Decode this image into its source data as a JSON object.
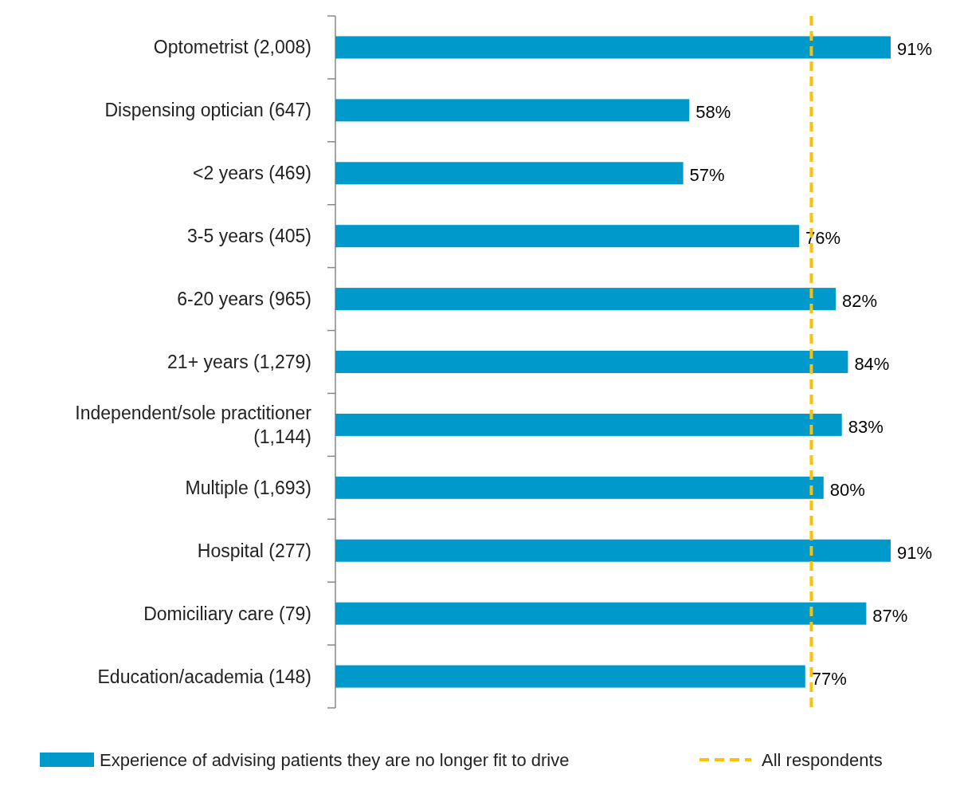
{
  "chart_data": {
    "type": "bar",
    "orientation": "horizontal",
    "categories": [
      "Optometrist (2,008)",
      "Dispensing optician (647)",
      "<2 years (469)",
      "3-5 years (405)",
      "6-20 years (965)",
      "21+ years (1,279)",
      "Independent/sole practitioner (1,144)",
      "Multiple (1,693)",
      "Hospital (277)",
      "Domiciliary care (79)",
      "Education/academia (148)"
    ],
    "series": [
      {
        "name": "Experience of advising patients they are no longer fit to drive",
        "color": "#0099cc",
        "values": [
          91,
          58,
          57,
          76,
          82,
          84,
          83,
          80,
          91,
          87,
          77
        ],
        "value_labels": [
          "91%",
          "58%",
          "57%",
          "76%",
          "82%",
          "84%",
          "83%",
          "80%",
          "91%",
          "87%",
          "77%"
        ]
      }
    ],
    "ref_lines": [
      {
        "axis": "x",
        "value": 78,
        "label": "All respondents",
        "color": "#ffc000",
        "line_style": "dashed"
      }
    ],
    "legend": "bottom",
    "grid": false
  }
}
